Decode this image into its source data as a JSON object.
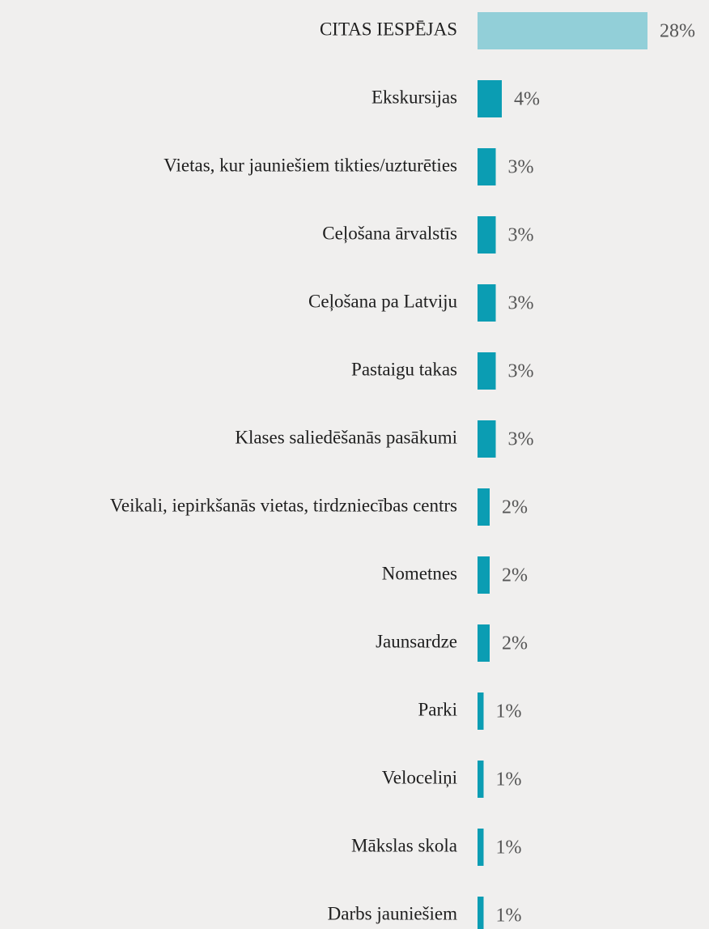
{
  "chart_data": {
    "type": "barh",
    "categories": [
      "CITAS IESPĒJAS",
      "Ekskursijas",
      "Vietas, kur jauniešiem tikties/uzturēties",
      "Ceļošana ārvalstīs",
      "Ceļošana pa Latviju",
      "Pastaigu takas",
      "Klases saliedēšanās pasākumi",
      "Veikali, iepirkšanās vietas, tirdzniecības centrs",
      "Nometnes",
      "Jaunsardze",
      "Parki",
      "Veloceliņi",
      "Mākslas skola",
      "Darbs jauniešiem"
    ],
    "values": [
      28,
      4,
      3,
      3,
      3,
      3,
      3,
      2,
      2,
      2,
      1,
      1,
      1,
      1
    ],
    "value_labels": [
      "28%",
      "4%",
      "3%",
      "3%",
      "3%",
      "3%",
      "3%",
      "2%",
      "2%",
      "2%",
      "1%",
      "1%",
      "1%",
      "1%"
    ],
    "colors": [
      "#92cfd8",
      "#0b9db3",
      "#0b9db3",
      "#0b9db3",
      "#0b9db3",
      "#0b9db3",
      "#0b9db3",
      "#0b9db3",
      "#0b9db3",
      "#0b9db3",
      "#0b9db3",
      "#0b9db3",
      "#0b9db3",
      "#0b9db3"
    ]
  }
}
